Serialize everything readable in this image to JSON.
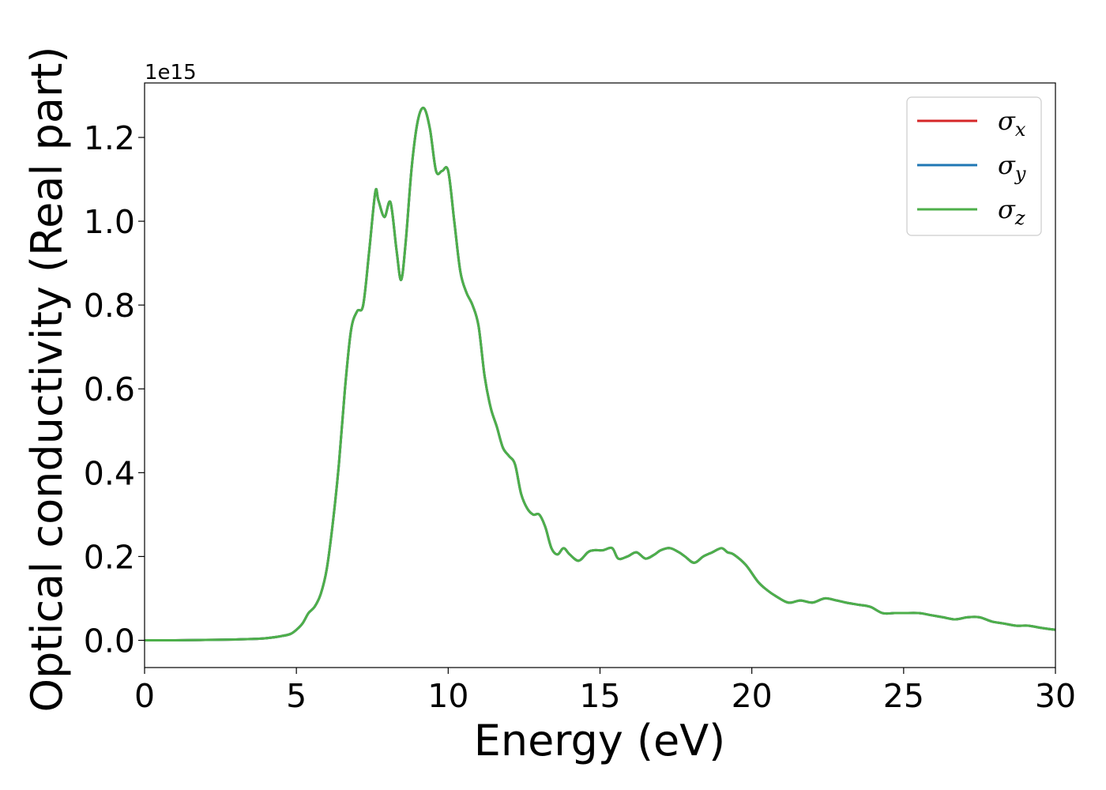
{
  "chart_data": {
    "type": "line",
    "xlabel": "Energy (eV)",
    "ylabel": "Optical conductivity (Real part)",
    "y_scale_label": "1e15",
    "xlim": [
      0,
      30
    ],
    "ylim": [
      -0.065,
      1.33
    ],
    "x_ticks": [
      0,
      5,
      10,
      15,
      20,
      25,
      30
    ],
    "x_tick_labels": [
      "0",
      "5",
      "10",
      "15",
      "20",
      "25",
      "30"
    ],
    "y_ticks": [
      0.0,
      0.2,
      0.4,
      0.6,
      0.8,
      1.0,
      1.2
    ],
    "y_tick_labels": [
      "0.0",
      "0.2",
      "0.4",
      "0.6",
      "0.8",
      "1.0",
      "1.2"
    ],
    "grid": false,
    "legend_position": "top-right",
    "x": [
      0,
      1,
      2,
      3,
      3.5,
      4,
      4.5,
      4.8,
      5.0,
      5.2,
      5.4,
      5.6,
      5.8,
      6.0,
      6.2,
      6.4,
      6.6,
      6.8,
      7.0,
      7.2,
      7.4,
      7.6,
      7.7,
      7.9,
      8.1,
      8.3,
      8.45,
      8.6,
      8.8,
      9.0,
      9.2,
      9.4,
      9.6,
      9.8,
      10.0,
      10.2,
      10.4,
      10.6,
      10.8,
      11.0,
      11.2,
      11.4,
      11.6,
      11.8,
      12.0,
      12.2,
      12.4,
      12.6,
      12.8,
      13.0,
      13.2,
      13.4,
      13.6,
      13.8,
      14.0,
      14.3,
      14.6,
      14.8,
      15.1,
      15.4,
      15.6,
      15.9,
      16.2,
      16.5,
      16.8,
      17.0,
      17.3,
      17.6,
      17.8,
      18.1,
      18.4,
      18.7,
      19.0,
      19.2,
      19.4,
      19.8,
      20.2,
      20.5,
      20.8,
      21.2,
      21.6,
      22.0,
      22.4,
      22.8,
      23.1,
      23.5,
      23.9,
      24.3,
      24.7,
      25.0,
      25.5,
      25.9,
      26.3,
      26.7,
      27.1,
      27.5,
      27.9,
      28.3,
      28.7,
      29.1,
      29.5,
      30.0
    ],
    "series": [
      {
        "name": "σx",
        "color": "#d62728",
        "values": [
          0.0,
          0.0,
          0.001,
          0.002,
          0.003,
          0.005,
          0.01,
          0.015,
          0.025,
          0.04,
          0.065,
          0.08,
          0.11,
          0.17,
          0.28,
          0.42,
          0.6,
          0.74,
          0.785,
          0.8,
          0.93,
          1.07,
          1.05,
          1.01,
          1.045,
          0.93,
          0.86,
          0.95,
          1.13,
          1.24,
          1.27,
          1.22,
          1.12,
          1.12,
          1.12,
          1.0,
          0.88,
          0.83,
          0.8,
          0.75,
          0.63,
          0.555,
          0.51,
          0.46,
          0.44,
          0.42,
          0.35,
          0.315,
          0.3,
          0.3,
          0.27,
          0.22,
          0.205,
          0.22,
          0.205,
          0.19,
          0.21,
          0.215,
          0.215,
          0.22,
          0.195,
          0.2,
          0.21,
          0.195,
          0.205,
          0.215,
          0.22,
          0.21,
          0.2,
          0.185,
          0.2,
          0.21,
          0.22,
          0.21,
          0.205,
          0.18,
          0.14,
          0.12,
          0.105,
          0.09,
          0.095,
          0.09,
          0.1,
          0.095,
          0.09,
          0.085,
          0.08,
          0.065,
          0.065,
          0.065,
          0.065,
          0.06,
          0.055,
          0.05,
          0.055,
          0.055,
          0.045,
          0.04,
          0.035,
          0.035,
          0.03,
          0.025
        ]
      },
      {
        "name": "σy",
        "color": "#1f77b4",
        "values": [
          0.0,
          0.0,
          0.001,
          0.002,
          0.003,
          0.005,
          0.01,
          0.015,
          0.025,
          0.04,
          0.065,
          0.08,
          0.11,
          0.17,
          0.28,
          0.42,
          0.6,
          0.74,
          0.785,
          0.8,
          0.93,
          1.07,
          1.05,
          1.01,
          1.045,
          0.93,
          0.86,
          0.95,
          1.13,
          1.24,
          1.27,
          1.22,
          1.12,
          1.12,
          1.12,
          1.0,
          0.88,
          0.83,
          0.8,
          0.75,
          0.63,
          0.555,
          0.51,
          0.46,
          0.44,
          0.42,
          0.35,
          0.315,
          0.3,
          0.3,
          0.27,
          0.22,
          0.205,
          0.22,
          0.205,
          0.19,
          0.21,
          0.215,
          0.215,
          0.22,
          0.195,
          0.2,
          0.21,
          0.195,
          0.205,
          0.215,
          0.22,
          0.21,
          0.2,
          0.185,
          0.2,
          0.21,
          0.22,
          0.21,
          0.205,
          0.18,
          0.14,
          0.12,
          0.105,
          0.09,
          0.095,
          0.09,
          0.1,
          0.095,
          0.09,
          0.085,
          0.08,
          0.065,
          0.065,
          0.065,
          0.065,
          0.06,
          0.055,
          0.05,
          0.055,
          0.055,
          0.045,
          0.04,
          0.035,
          0.035,
          0.03,
          0.025
        ]
      },
      {
        "name": "σz",
        "color": "#4daf4a",
        "values": [
          0.0,
          0.0,
          0.001,
          0.002,
          0.003,
          0.005,
          0.01,
          0.015,
          0.025,
          0.04,
          0.065,
          0.08,
          0.11,
          0.17,
          0.28,
          0.42,
          0.6,
          0.74,
          0.785,
          0.8,
          0.93,
          1.07,
          1.05,
          1.01,
          1.045,
          0.93,
          0.86,
          0.95,
          1.13,
          1.24,
          1.27,
          1.22,
          1.12,
          1.12,
          1.12,
          1.0,
          0.88,
          0.83,
          0.8,
          0.75,
          0.63,
          0.555,
          0.51,
          0.46,
          0.44,
          0.42,
          0.35,
          0.315,
          0.3,
          0.3,
          0.27,
          0.22,
          0.205,
          0.22,
          0.205,
          0.19,
          0.21,
          0.215,
          0.215,
          0.22,
          0.195,
          0.2,
          0.21,
          0.195,
          0.205,
          0.215,
          0.22,
          0.21,
          0.2,
          0.185,
          0.2,
          0.21,
          0.22,
          0.21,
          0.205,
          0.18,
          0.14,
          0.12,
          0.105,
          0.09,
          0.095,
          0.09,
          0.1,
          0.095,
          0.09,
          0.085,
          0.08,
          0.065,
          0.065,
          0.065,
          0.065,
          0.06,
          0.055,
          0.05,
          0.055,
          0.055,
          0.045,
          0.04,
          0.035,
          0.035,
          0.03,
          0.025
        ]
      }
    ],
    "legend_entries": [
      {
        "symbol": "σ",
        "subscript": "x",
        "color": "#d62728"
      },
      {
        "symbol": "σ",
        "subscript": "y",
        "color": "#1f77b4"
      },
      {
        "symbol": "σ",
        "subscript": "z",
        "color": "#4daf4a"
      }
    ]
  }
}
